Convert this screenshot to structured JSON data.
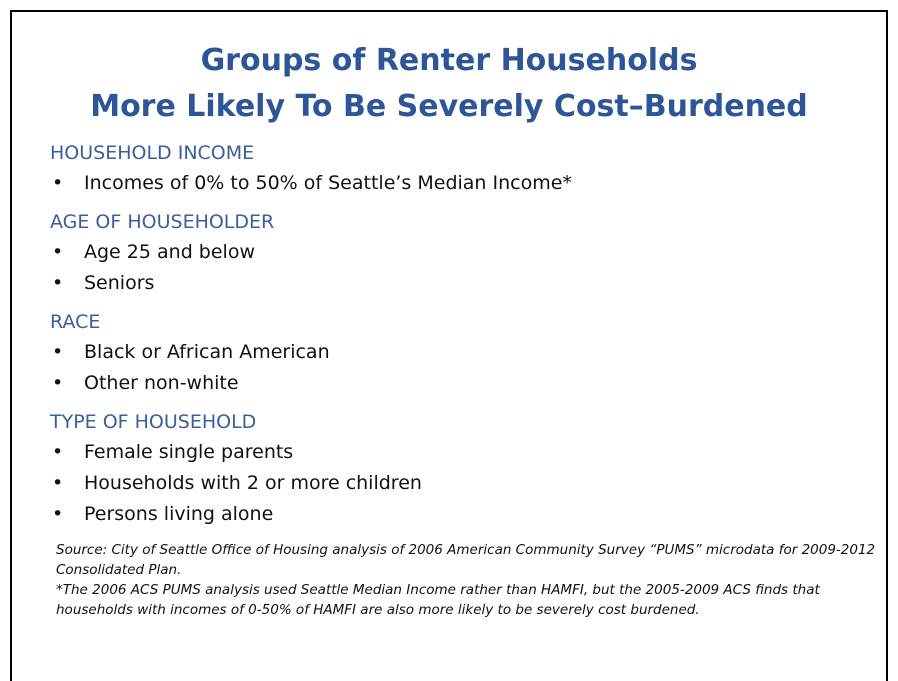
{
  "title": [
    "Groups of Renter Households",
    "More Likely To Be Severely Cost–Burdened"
  ],
  "sections": [
    {
      "heading": "HOUSEHOLD INCOME",
      "items": [
        "Incomes of 0% to 50% of Seattle’s Median Income*"
      ]
    },
    {
      "heading": "AGE OF HOUSEHOLDER",
      "items": [
        "Age 25 and below",
        "Seniors"
      ]
    },
    {
      "heading": "RACE",
      "items": [
        "Black or African American",
        "Other non-white"
      ]
    },
    {
      "heading": "TYPE OF HOUSEHOLD",
      "items": [
        "Female single parents",
        "Households with 2 or more children",
        "Persons living alone"
      ]
    }
  ],
  "footnotes": [
    "Source:  City of Seattle Office of Housing analysis of 2006 American Community Survey “PUMS” microdata for 2009-2012 Consolidated Plan.",
    "*The 2006 ACS PUMS analysis used Seattle Median Income rather than HAMFI, but the 2005-2009 ACS  finds that households with incomes of 0-50% of HAMFI are also more likely to be severely cost burdened."
  ]
}
